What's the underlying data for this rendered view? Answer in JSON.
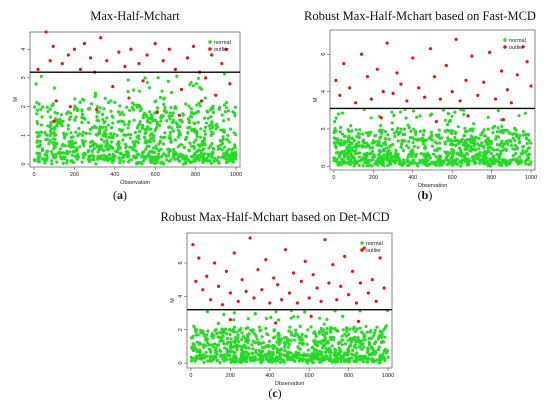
{
  "colors": {
    "normal": "#22dd22",
    "outlier": "#ee1111",
    "threshold": "#000000"
  },
  "panels": [
    {
      "label": "a"
    },
    {
      "label": "b"
    },
    {
      "label": "c"
    }
  ],
  "chart_data": [
    {
      "type": "scatter",
      "title": "Max-Half-Mchart",
      "xlabel": "Observation",
      "ylabel": "M",
      "xlim": [
        -20,
        1020
      ],
      "ylim": [
        -0.1,
        4.6
      ],
      "xticks": [
        0,
        200,
        400,
        600,
        800,
        1000
      ],
      "yticks": [
        0,
        1,
        2,
        3,
        4
      ],
      "threshold": 3.2,
      "legend": {
        "position": "top-right",
        "entries": [
          "normal",
          "outlier"
        ]
      },
      "series": [
        {
          "name": "normal",
          "n": 920,
          "range": [
            0,
            3.15
          ],
          "seed": 11
        },
        {
          "name": "outlier",
          "points": [
            [
              20,
              3.3
            ],
            [
              60,
              4.6
            ],
            [
              80,
              3.6
            ],
            [
              95,
              4.1
            ],
            [
              110,
              2.2
            ],
            [
              140,
              3.5
            ],
            [
              170,
              3.8
            ],
            [
              200,
              4.0
            ],
            [
              230,
              3.3
            ],
            [
              250,
              4.2
            ],
            [
              280,
              3.7
            ],
            [
              300,
              3.2
            ],
            [
              330,
              4.4
            ],
            [
              360,
              3.6
            ],
            [
              390,
              2.7
            ],
            [
              420,
              3.9
            ],
            [
              450,
              3.4
            ],
            [
              480,
              4.0
            ],
            [
              520,
              3.5
            ],
            [
              540,
              2.9
            ],
            [
              560,
              3.8
            ],
            [
              600,
              4.2
            ],
            [
              640,
              3.6
            ],
            [
              670,
              4.0
            ],
            [
              700,
              3.3
            ],
            [
              730,
              2.6
            ],
            [
              760,
              3.7
            ],
            [
              790,
              4.1
            ],
            [
              820,
              3.2
            ],
            [
              850,
              3.0
            ],
            [
              880,
              3.8
            ],
            [
              900,
              2.4
            ],
            [
              930,
              3.5
            ],
            [
              950,
              4.0
            ],
            [
              970,
              2.8
            ],
            [
              180,
              2.0
            ],
            [
              310,
              1.9
            ],
            [
              470,
              2.3
            ],
            [
              610,
              1.8
            ],
            [
              830,
              2.2
            ],
            [
              100,
              1.5
            ],
            [
              720,
              1.7
            ]
          ]
        }
      ]
    },
    {
      "type": "scatter",
      "title": "Robust Max-Half-Mchart based on Fast-MCD",
      "xlabel": "Observation",
      "ylabel": "M",
      "xlim": [
        -20,
        1020
      ],
      "ylim": [
        -0.2,
        7.3
      ],
      "xticks": [
        0,
        200,
        400,
        600,
        800,
        1000
      ],
      "yticks": [
        0,
        2,
        4,
        6
      ],
      "threshold": 3.1,
      "legend": {
        "position": "top-right",
        "entries": [
          "normal",
          "outlier"
        ]
      },
      "series": [
        {
          "name": "normal",
          "n": 880,
          "range": [
            0,
            3.05
          ],
          "seed": 23
        },
        {
          "name": "outlier",
          "points": [
            [
              10,
              4.6
            ],
            [
              30,
              3.8
            ],
            [
              50,
              5.5
            ],
            [
              80,
              4.2
            ],
            [
              110,
              3.4
            ],
            [
              140,
              6.0
            ],
            [
              170,
              4.8
            ],
            [
              190,
              3.6
            ],
            [
              220,
              5.2
            ],
            [
              250,
              4.0
            ],
            [
              270,
              6.6
            ],
            [
              300,
              3.9
            ],
            [
              320,
              5.0
            ],
            [
              340,
              4.4
            ],
            [
              370,
              3.5
            ],
            [
              400,
              5.8
            ],
            [
              430,
              4.2
            ],
            [
              460,
              3.7
            ],
            [
              490,
              6.3
            ],
            [
              510,
              4.8
            ],
            [
              540,
              3.6
            ],
            [
              570,
              5.4
            ],
            [
              600,
              4.0
            ],
            [
              620,
              6.8
            ],
            [
              640,
              3.5
            ],
            [
              670,
              4.6
            ],
            [
              700,
              5.9
            ],
            [
              730,
              3.8
            ],
            [
              760,
              4.5
            ],
            [
              790,
              6.1
            ],
            [
              820,
              3.6
            ],
            [
              850,
              5.1
            ],
            [
              880,
              4.1
            ],
            [
              900,
              3.4
            ],
            [
              930,
              4.9
            ],
            [
              960,
              6.4
            ],
            [
              980,
              5.6
            ],
            [
              1000,
              4.3
            ],
            [
              240,
              2.6
            ],
            [
              520,
              2.4
            ],
            [
              680,
              2.7
            ],
            [
              860,
              2.5
            ]
          ]
        }
      ]
    },
    {
      "type": "scatter",
      "title": "Robust Max-Half-Mchart based on Det-MCD",
      "xlabel": "Observation",
      "ylabel": "M",
      "xlim": [
        -20,
        1020
      ],
      "ylim": [
        -0.3,
        7.8
      ],
      "xticks": [
        0,
        200,
        400,
        600,
        800,
        1000
      ],
      "yticks": [
        0,
        2,
        4,
        6
      ],
      "threshold": 3.2,
      "legend": {
        "position": "top-right",
        "entries": [
          "normal",
          "outlier"
        ]
      },
      "series": [
        {
          "name": "normal",
          "n": 880,
          "range": [
            0,
            3.15
          ],
          "seed": 37
        },
        {
          "name": "outlier",
          "points": [
            [
              10,
              7.1
            ],
            [
              25,
              4.9
            ],
            [
              40,
              6.3
            ],
            [
              60,
              4.4
            ],
            [
              80,
              5.2
            ],
            [
              100,
              3.8
            ],
            [
              120,
              6.0
            ],
            [
              140,
              4.6
            ],
            [
              160,
              3.5
            ],
            [
              180,
              5.5
            ],
            [
              200,
              4.2
            ],
            [
              220,
              6.6
            ],
            [
              240,
              3.7
            ],
            [
              260,
              5.0
            ],
            [
              280,
              4.3
            ],
            [
              300,
              7.5
            ],
            [
              320,
              3.9
            ],
            [
              340,
              5.6
            ],
            [
              360,
              4.4
            ],
            [
              380,
              6.2
            ],
            [
              400,
              3.6
            ],
            [
              420,
              5.1
            ],
            [
              440,
              4.7
            ],
            [
              460,
              3.8
            ],
            [
              480,
              6.8
            ],
            [
              500,
              4.2
            ],
            [
              520,
              5.4
            ],
            [
              540,
              3.6
            ],
            [
              560,
              4.9
            ],
            [
              580,
              6.1
            ],
            [
              600,
              3.9
            ],
            [
              620,
              5.3
            ],
            [
              640,
              4.5
            ],
            [
              660,
              3.7
            ],
            [
              680,
              7.4
            ],
            [
              700,
              4.8
            ],
            [
              720,
              5.9
            ],
            [
              740,
              3.8
            ],
            [
              760,
              4.6
            ],
            [
              780,
              6.4
            ],
            [
              800,
              4.1
            ],
            [
              820,
              5.5
            ],
            [
              840,
              3.6
            ],
            [
              860,
              4.8
            ],
            [
              880,
              6.9
            ],
            [
              900,
              4.2
            ],
            [
              920,
              5.0
            ],
            [
              940,
              3.7
            ],
            [
              960,
              6.3
            ],
            [
              980,
              4.5
            ],
            [
              200,
              2.6
            ],
            [
              430,
              2.4
            ],
            [
              610,
              2.8
            ],
            [
              850,
              2.5
            ]
          ]
        }
      ]
    }
  ]
}
